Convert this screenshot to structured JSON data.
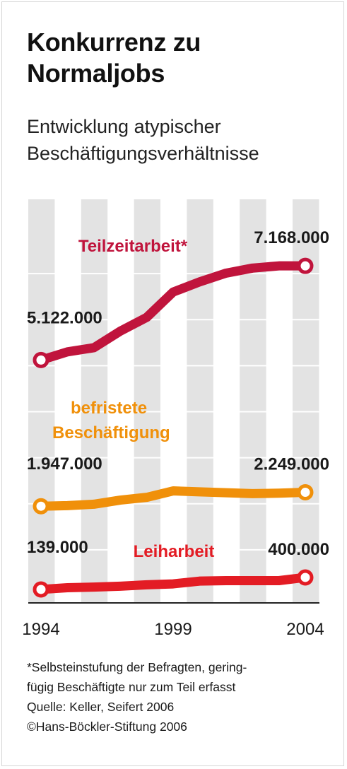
{
  "title": "Konkurrenz zu Normaljobs",
  "subtitle": "Entwicklung atypischer Beschäftigungsverhältnisse",
  "footnotes": [
    "*Selbsteinstufung der Befragten, gering-",
    "fügig Beschäftigte nur zum Teil erfasst",
    "Quelle: Keller, Seifert 2006",
    "©Hans-Böckler-Stiftung 2006"
  ],
  "chart_data": {
    "type": "line",
    "x": [
      1994,
      1995,
      1996,
      1997,
      1998,
      1999,
      2000,
      2001,
      2002,
      2003,
      2004
    ],
    "x_tick_labels": [
      "1994",
      "1999",
      "2004"
    ],
    "x_ticks": [
      1994,
      1999,
      2004
    ],
    "ylim": [
      0,
      8000000
    ],
    "grid": true,
    "series": [
      {
        "name": "Teilzeitarbeit*",
        "color": "#c0143c",
        "values": [
          5122000,
          5300000,
          5390000,
          5750000,
          6050000,
          6600000,
          6820000,
          7010000,
          7120000,
          7168000,
          7168000
        ],
        "start_label": "5.122.000",
        "end_label": "7.168.000"
      },
      {
        "name": "befristete Beschäftigung",
        "color": "#f0900a",
        "values": [
          1947000,
          1960000,
          1990000,
          2080000,
          2140000,
          2280000,
          2260000,
          2240000,
          2220000,
          2230000,
          2249000
        ],
        "start_label": "1.947.000",
        "end_label": "2.249.000"
      },
      {
        "name": "Leiharbeit",
        "color": "#e31c24",
        "values": [
          139000,
          176000,
          190000,
          210000,
          240000,
          260000,
          320000,
          330000,
          330000,
          330000,
          400000
        ],
        "start_label": "139.000",
        "end_label": "400.000"
      }
    ]
  }
}
